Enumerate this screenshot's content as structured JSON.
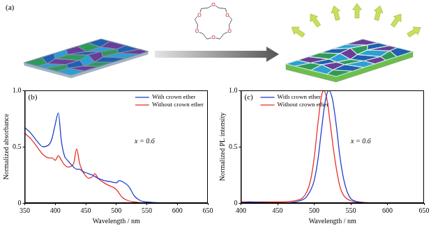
{
  "panel_a": {
    "label": "(a)",
    "molecule_atoms": [
      "O",
      "O",
      "O",
      "O",
      "O",
      "O"
    ]
  },
  "chart_data": [
    {
      "type": "line",
      "title": "(b)",
      "xlabel": "Wavelength / nm",
      "ylabel": "Normalized absorbance",
      "annotations": [
        "x = 0.6"
      ],
      "legend": "upper right",
      "grid": false,
      "xlim": [
        350,
        650
      ],
      "xticks": [
        350,
        400,
        450,
        500,
        550,
        600,
        650
      ],
      "ylim": [
        0,
        1
      ],
      "yticks": [
        0,
        0.5,
        {
          "value": 1,
          "label": "1.0"
        }
      ],
      "series": [
        {
          "name": "With crown ether",
          "color": "#1f3fd0",
          "x": [
            350,
            360,
            370,
            380,
            390,
            395,
            400,
            405,
            410,
            415,
            420,
            430,
            435,
            440,
            445,
            450,
            460,
            470,
            480,
            490,
            500,
            505,
            510,
            520,
            530,
            540,
            550,
            600,
            650
          ],
          "values": [
            0.67,
            0.62,
            0.55,
            0.5,
            0.52,
            0.58,
            0.7,
            0.8,
            0.55,
            0.42,
            0.38,
            0.32,
            0.3,
            0.3,
            0.28,
            0.27,
            0.25,
            0.22,
            0.2,
            0.19,
            0.18,
            0.2,
            0.19,
            0.15,
            0.06,
            0.02,
            0.01,
            0,
            0
          ]
        },
        {
          "name": "Without crown ether",
          "color": "#e8302a",
          "x": [
            350,
            360,
            370,
            380,
            390,
            395,
            400,
            405,
            410,
            415,
            420,
            430,
            435,
            440,
            445,
            450,
            455,
            460,
            465,
            470,
            480,
            490,
            495,
            500,
            510,
            520,
            530,
            550,
            650
          ],
          "values": [
            0.62,
            0.57,
            0.5,
            0.43,
            0.4,
            0.4,
            0.38,
            0.42,
            0.38,
            0.34,
            0.32,
            0.35,
            0.48,
            0.35,
            0.28,
            0.24,
            0.22,
            0.23,
            0.26,
            0.22,
            0.18,
            0.15,
            0.14,
            0.12,
            0.05,
            0.02,
            0.01,
            0,
            0
          ]
        }
      ]
    },
    {
      "type": "line",
      "title": "(c)",
      "xlabel": "Wavelength / nm",
      "ylabel": "Normalized PL intensity",
      "annotations": [
        "x = 0.6"
      ],
      "legend": "upper left",
      "grid": false,
      "xlim": [
        400,
        650
      ],
      "xticks": [
        400,
        450,
        500,
        550,
        600,
        650
      ],
      "ylim": [
        0,
        1
      ],
      "yticks": [
        0,
        0.5,
        {
          "value": 1,
          "label": "1.0"
        }
      ],
      "series": [
        {
          "name": "With crown ether",
          "color": "#1f3fd0",
          "x": [
            400,
            410,
            450,
            480,
            490,
            500,
            505,
            510,
            515,
            520,
            525,
            530,
            535,
            540,
            545,
            550,
            560,
            580,
            650
          ],
          "values": [
            0,
            0.01,
            0,
            0.02,
            0.06,
            0.2,
            0.38,
            0.65,
            0.9,
            1,
            0.92,
            0.7,
            0.42,
            0.22,
            0.1,
            0.04,
            0.01,
            0,
            0
          ]
        },
        {
          "name": "Without crown ether",
          "color": "#e8302a",
          "x": [
            400,
            450,
            480,
            490,
            495,
            500,
            505,
            510,
            513,
            518,
            522,
            528,
            535,
            540,
            550,
            560,
            580,
            650
          ],
          "values": [
            0.01,
            0.01,
            0.03,
            0.1,
            0.2,
            0.4,
            0.7,
            0.95,
            1,
            0.9,
            0.7,
            0.4,
            0.15,
            0.07,
            0.02,
            0.01,
            0,
            0
          ]
        }
      ]
    }
  ]
}
